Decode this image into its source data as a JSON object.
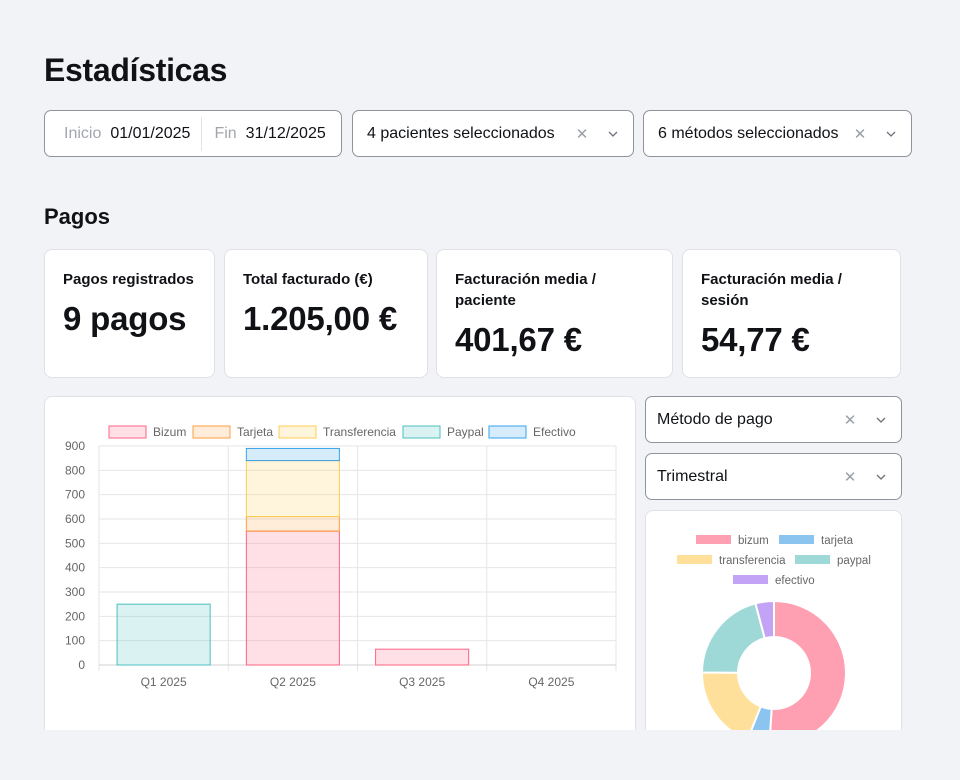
{
  "page": {
    "title": "Estadísticas",
    "section_title": "Pagos"
  },
  "filters": {
    "date_start_label": "Inicio",
    "date_start_value": "01/01/2025",
    "date_end_label": "Fin",
    "date_end_value": "31/12/2025",
    "patients_value": "4 pacientes seleccionados",
    "methods_value": "6 métodos seleccionados"
  },
  "kpis": [
    {
      "label": "Pagos registrados",
      "value": "9 pagos"
    },
    {
      "label": "Total facturado (€)",
      "value": "1.205,00 €"
    },
    {
      "label": "Facturación media / paciente",
      "value": "401,67 €"
    },
    {
      "label": "Facturación media / sesión",
      "value": "54,77 €"
    }
  ],
  "side_selects": {
    "group_by": "Método de pago",
    "period": "Trimestral"
  },
  "colors": {
    "Bizum": "#ff6384",
    "Tarjeta": "#ff9f40",
    "Transferencia": "#ffcd56",
    "Paypal": "#4bc0c0",
    "Efectivo": "#36a2eb",
    "donut_bizum": "#ff9fb2",
    "donut_tarjeta": "#8cc4f0",
    "donut_transferencia": "#ffe09a",
    "donut_paypal": "#9ed9d8",
    "donut_efectivo": "#c3a3f5"
  },
  "chart_data": [
    {
      "type": "bar",
      "stacked": true,
      "categories": [
        "Q1 2025",
        "Q2 2025",
        "Q3 2025",
        "Q4 2025"
      ],
      "ylim": [
        0,
        900
      ],
      "yticks": [
        0,
        100,
        200,
        300,
        400,
        500,
        600,
        700,
        800,
        900
      ],
      "grid": true,
      "legend_position": "top",
      "series": [
        {
          "name": "Bizum",
          "values": [
            0,
            550,
            65,
            0
          ]
        },
        {
          "name": "Tarjeta",
          "values": [
            0,
            60,
            0,
            0
          ]
        },
        {
          "name": "Transferencia",
          "values": [
            0,
            230,
            0,
            0
          ]
        },
        {
          "name": "Paypal",
          "values": [
            250,
            0,
            0,
            0
          ]
        },
        {
          "name": "Efectivo",
          "values": [
            0,
            50,
            0,
            0
          ]
        }
      ]
    },
    {
      "type": "pie",
      "donut": true,
      "legend_position": "top",
      "labels": [
        "bizum",
        "tarjeta",
        "transferencia",
        "paypal",
        "efectivo"
      ],
      "values": [
        615,
        60,
        230,
        250,
        50
      ]
    }
  ]
}
